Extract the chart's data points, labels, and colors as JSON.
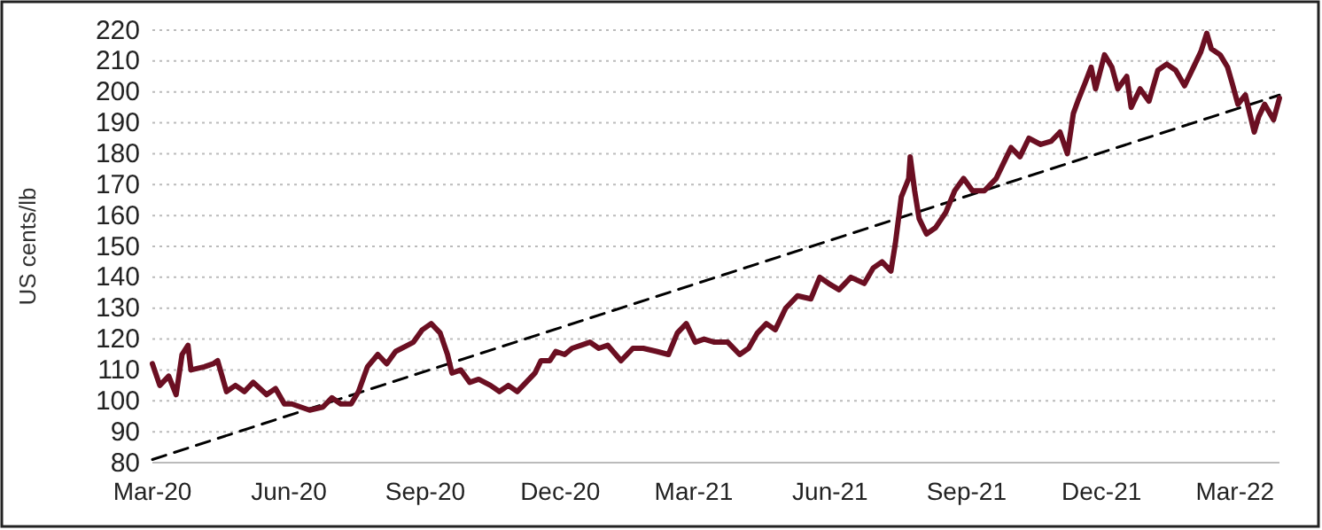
{
  "chart_data": {
    "type": "line",
    "ylabel": "US cents/lb",
    "grid": "y",
    "xlim": [
      "2020-03-01",
      "2022-03-31"
    ],
    "xticks": [
      {
        "value": "2020-03-01",
        "label": "Mar-20"
      },
      {
        "value": "2020-06-01",
        "label": "Jun-20"
      },
      {
        "value": "2020-09-01",
        "label": "Sep-20"
      },
      {
        "value": "2020-12-01",
        "label": "Dec-20"
      },
      {
        "value": "2021-03-01",
        "label": "Mar-21"
      },
      {
        "value": "2021-06-01",
        "label": "Jun-21"
      },
      {
        "value": "2021-09-01",
        "label": "Sep-21"
      },
      {
        "value": "2021-12-01",
        "label": "Dec-21"
      },
      {
        "value": "2022-03-01",
        "label": "Mar-22"
      }
    ],
    "ylim": [
      80,
      220
    ],
    "yticks": [
      80,
      90,
      100,
      110,
      120,
      130,
      140,
      150,
      160,
      170,
      180,
      190,
      200,
      210,
      220
    ],
    "series": [
      {
        "color": "#6b0f22",
        "line_style": "solid",
        "x": [
          "2020-03-01",
          "2020-03-06",
          "2020-03-12",
          "2020-03-17",
          "2020-03-21",
          "2020-03-25",
          "2020-03-27",
          "2020-04-05",
          "2020-04-11",
          "2020-04-14",
          "2020-04-20",
          "2020-04-26",
          "2020-05-02",
          "2020-05-08",
          "2020-05-17",
          "2020-05-23",
          "2020-05-29",
          "2020-06-03",
          "2020-06-09",
          "2020-06-15",
          "2020-06-24",
          "2020-06-30",
          "2020-07-06",
          "2020-07-13",
          "2020-07-18",
          "2020-07-24",
          "2020-07-31",
          "2020-08-06",
          "2020-08-12",
          "2020-08-20",
          "2020-08-24",
          "2020-08-30",
          "2020-09-05",
          "2020-09-11",
          "2020-09-16",
          "2020-09-19",
          "2020-09-25",
          "2020-10-01",
          "2020-10-07",
          "2020-10-15",
          "2020-10-21",
          "2020-10-27",
          "2020-11-02",
          "2020-11-08",
          "2020-11-14",
          "2020-11-18",
          "2020-11-24",
          "2020-11-28",
          "2020-12-04",
          "2020-12-09",
          "2020-12-15",
          "2020-12-21",
          "2020-12-27",
          "2021-01-02",
          "2021-01-11",
          "2021-01-19",
          "2021-01-26",
          "2021-02-04",
          "2021-02-12",
          "2021-02-18",
          "2021-02-24",
          "2021-03-02",
          "2021-03-08",
          "2021-03-15",
          "2021-03-24",
          "2021-04-01",
          "2021-04-07",
          "2021-04-13",
          "2021-04-19",
          "2021-04-25",
          "2021-05-02",
          "2021-05-10",
          "2021-05-19",
          "2021-05-25",
          "2021-05-31",
          "2021-06-07",
          "2021-06-15",
          "2021-06-24",
          "2021-06-30",
          "2021-07-06",
          "2021-07-12",
          "2021-07-15",
          "2021-07-19",
          "2021-07-24",
          "2021-07-25",
          "2021-07-28",
          "2021-07-31",
          "2021-08-05",
          "2021-08-11",
          "2021-08-18",
          "2021-08-24",
          "2021-08-30",
          "2021-09-05",
          "2021-09-13",
          "2021-09-21",
          "2021-09-27",
          "2021-10-01",
          "2021-10-07",
          "2021-10-13",
          "2021-10-21",
          "2021-10-28",
          "2021-11-03",
          "2021-11-08",
          "2021-11-12",
          "2021-11-15",
          "2021-11-20",
          "2021-11-24",
          "2021-11-27",
          "2021-12-03",
          "2021-12-08",
          "2021-12-12",
          "2021-12-18",
          "2021-12-21",
          "2021-12-27",
          "2022-01-02",
          "2022-01-08",
          "2022-01-14",
          "2022-01-20",
          "2022-01-26",
          "2022-02-01",
          "2022-02-06",
          "2022-02-10",
          "2022-02-13",
          "2022-02-19",
          "2022-02-24",
          "2022-02-27",
          "2022-03-03",
          "2022-03-08",
          "2022-03-14",
          "2022-03-17",
          "2022-03-21",
          "2022-03-27",
          "2022-03-31"
        ],
        "values": [
          112,
          105,
          108,
          102,
          115,
          118,
          110,
          111,
          112,
          113,
          103,
          105,
          103,
          106,
          102,
          104,
          99,
          99,
          98,
          97,
          98,
          101,
          99,
          99,
          103,
          111,
          115,
          112,
          116,
          118,
          119,
          123,
          125,
          122,
          115,
          109,
          110,
          106,
          107,
          105,
          103,
          105,
          103,
          106,
          109,
          113,
          113,
          116,
          115,
          117,
          118,
          119,
          117,
          118,
          113,
          117,
          117,
          116,
          115,
          122,
          125,
          119,
          120,
          119,
          119,
          115,
          117,
          122,
          125,
          123,
          130,
          134,
          133,
          140,
          138,
          136,
          140,
          138,
          143,
          145,
          142,
          151,
          166,
          172,
          179,
          168,
          159,
          154,
          156,
          161,
          168,
          172,
          168,
          168,
          172,
          178,
          182,
          179,
          185,
          183,
          184,
          187,
          180,
          193,
          197,
          203,
          208,
          201,
          212,
          208,
          201,
          205,
          195,
          201,
          197,
          207,
          209,
          207,
          202,
          208,
          213,
          219,
          214,
          212,
          208,
          203,
          196,
          199,
          187,
          192,
          196,
          191,
          198
        ]
      },
      {
        "type": "line",
        "color": "#000000",
        "line_style": "dashed",
        "x": [
          "2020-03-01",
          "2022-03-31"
        ],
        "values": [
          81,
          199
        ]
      }
    ]
  }
}
